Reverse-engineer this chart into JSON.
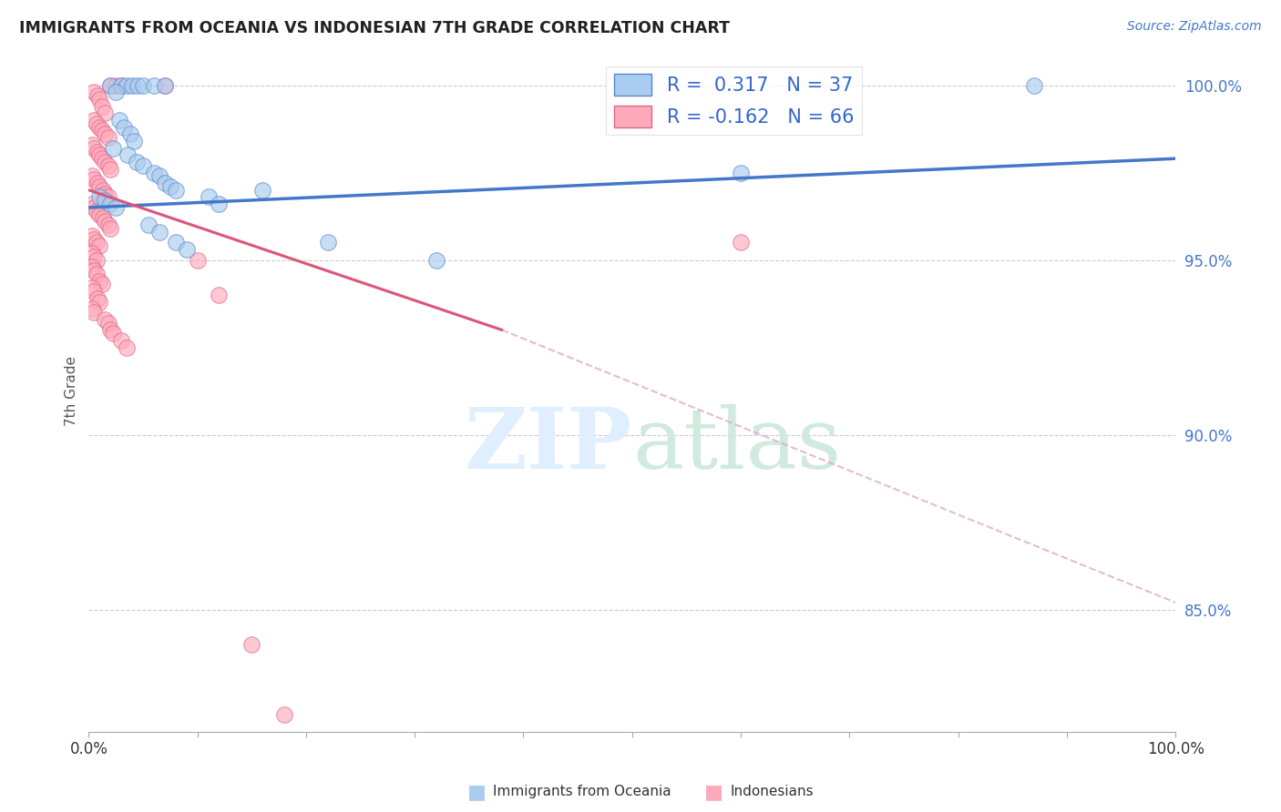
{
  "title": "IMMIGRANTS FROM OCEANIA VS INDONESIAN 7TH GRADE CORRELATION CHART",
  "source": "Source: ZipAtlas.com",
  "ylabel": "7th Grade",
  "y_tick_vals": [
    0.85,
    0.9,
    0.95,
    1.0
  ],
  "watermark_zip": "ZIP",
  "watermark_atlas": "atlas",
  "blue_color": "#aaccee",
  "blue_edge": "#5588cc",
  "pink_color": "#ffaabb",
  "pink_edge": "#dd6688",
  "blue_line_color": "#4477cc",
  "pink_line_color": "#dd5577",
  "dashed_line_color": "#ddaacc",
  "blue_scatter": [
    [
      0.02,
      1.0
    ],
    [
      0.03,
      1.0
    ],
    [
      0.035,
      1.0
    ],
    [
      0.04,
      1.0
    ],
    [
      0.045,
      1.0
    ],
    [
      0.05,
      1.0
    ],
    [
      0.06,
      1.0
    ],
    [
      0.07,
      1.0
    ],
    [
      0.025,
      0.998
    ],
    [
      0.028,
      0.99
    ],
    [
      0.032,
      0.988
    ],
    [
      0.038,
      0.986
    ],
    [
      0.042,
      0.984
    ],
    [
      0.022,
      0.982
    ],
    [
      0.036,
      0.98
    ],
    [
      0.044,
      0.978
    ],
    [
      0.05,
      0.977
    ],
    [
      0.06,
      0.975
    ],
    [
      0.065,
      0.974
    ],
    [
      0.07,
      0.972
    ],
    [
      0.075,
      0.971
    ],
    [
      0.08,
      0.97
    ],
    [
      0.01,
      0.968
    ],
    [
      0.015,
      0.967
    ],
    [
      0.02,
      0.966
    ],
    [
      0.025,
      0.965
    ],
    [
      0.11,
      0.968
    ],
    [
      0.12,
      0.966
    ],
    [
      0.055,
      0.96
    ],
    [
      0.065,
      0.958
    ],
    [
      0.08,
      0.955
    ],
    [
      0.09,
      0.953
    ],
    [
      0.16,
      0.97
    ],
    [
      0.22,
      0.955
    ],
    [
      0.32,
      0.95
    ],
    [
      0.6,
      0.975
    ],
    [
      0.87,
      1.0
    ]
  ],
  "pink_scatter": [
    [
      0.02,
      1.0
    ],
    [
      0.025,
      1.0
    ],
    [
      0.03,
      1.0
    ],
    [
      0.07,
      1.0
    ],
    [
      0.005,
      0.998
    ],
    [
      0.008,
      0.997
    ],
    [
      0.01,
      0.996
    ],
    [
      0.012,
      0.994
    ],
    [
      0.015,
      0.992
    ],
    [
      0.005,
      0.99
    ],
    [
      0.007,
      0.989
    ],
    [
      0.01,
      0.988
    ],
    [
      0.012,
      0.987
    ],
    [
      0.015,
      0.986
    ],
    [
      0.018,
      0.985
    ],
    [
      0.003,
      0.983
    ],
    [
      0.005,
      0.982
    ],
    [
      0.008,
      0.981
    ],
    [
      0.01,
      0.98
    ],
    [
      0.012,
      0.979
    ],
    [
      0.015,
      0.978
    ],
    [
      0.018,
      0.977
    ],
    [
      0.02,
      0.976
    ],
    [
      0.003,
      0.974
    ],
    [
      0.005,
      0.973
    ],
    [
      0.008,
      0.972
    ],
    [
      0.01,
      0.971
    ],
    [
      0.013,
      0.97
    ],
    [
      0.015,
      0.969
    ],
    [
      0.018,
      0.968
    ],
    [
      0.003,
      0.966
    ],
    [
      0.005,
      0.965
    ],
    [
      0.007,
      0.964
    ],
    [
      0.01,
      0.963
    ],
    [
      0.013,
      0.962
    ],
    [
      0.015,
      0.961
    ],
    [
      0.018,
      0.96
    ],
    [
      0.02,
      0.959
    ],
    [
      0.003,
      0.957
    ],
    [
      0.005,
      0.956
    ],
    [
      0.007,
      0.955
    ],
    [
      0.01,
      0.954
    ],
    [
      0.003,
      0.952
    ],
    [
      0.005,
      0.951
    ],
    [
      0.007,
      0.95
    ],
    [
      0.003,
      0.948
    ],
    [
      0.005,
      0.947
    ],
    [
      0.007,
      0.946
    ],
    [
      0.01,
      0.944
    ],
    [
      0.012,
      0.943
    ],
    [
      0.003,
      0.942
    ],
    [
      0.005,
      0.941
    ],
    [
      0.008,
      0.939
    ],
    [
      0.01,
      0.938
    ],
    [
      0.003,
      0.936
    ],
    [
      0.005,
      0.935
    ],
    [
      0.015,
      0.933
    ],
    [
      0.018,
      0.932
    ],
    [
      0.02,
      0.93
    ],
    [
      0.022,
      0.929
    ],
    [
      0.03,
      0.927
    ],
    [
      0.035,
      0.925
    ],
    [
      0.6,
      0.955
    ],
    [
      0.1,
      0.95
    ],
    [
      0.12,
      0.94
    ],
    [
      0.15,
      0.84
    ],
    [
      0.18,
      0.82
    ]
  ],
  "xlim": [
    0.0,
    1.0
  ],
  "ylim": [
    0.815,
    1.01
  ],
  "blue_trend_x": [
    0.0,
    1.0
  ],
  "blue_trend_y": [
    0.965,
    0.979
  ],
  "pink_trend_x": [
    0.0,
    0.38
  ],
  "pink_trend_y": [
    0.97,
    0.93
  ],
  "dashed_trend_x": [
    0.38,
    1.0
  ],
  "dashed_trend_y": [
    0.93,
    0.852
  ]
}
